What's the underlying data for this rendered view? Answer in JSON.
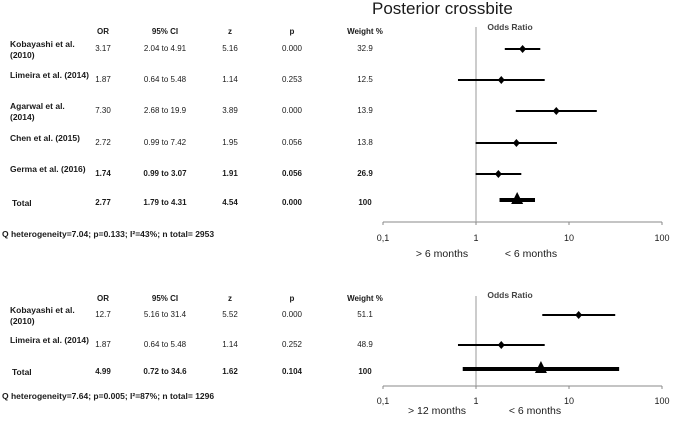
{
  "title": "Posterior crossbite",
  "chart_data": [
    {
      "type": "forest",
      "columns": [
        "OR",
        "95% CI",
        "z",
        "p",
        "Weight %"
      ],
      "axis_title": "Odds Ratio",
      "x_scale": "log",
      "xlim": [
        0.1,
        100
      ],
      "ticks": [
        {
          "value": 0.1,
          "label": "0,1"
        },
        {
          "value": 1,
          "label": "1"
        },
        {
          "value": 10,
          "label": "10"
        },
        {
          "value": 100,
          "label": "100"
        }
      ],
      "left_label": "> 6 months",
      "right_label": "< 6 months",
      "studies": [
        {
          "name": "Kobayashi et al. (2010)",
          "or": 3.17,
          "lo": 2.04,
          "hi": 4.91,
          "or_text": "3.17",
          "ci_text": "2.04 to 4.91",
          "z": "5.16",
          "p": "0.000",
          "weight": "32.9",
          "bold": false
        },
        {
          "name": "Limeira et al. (2014)",
          "or": 1.87,
          "lo": 0.64,
          "hi": 5.48,
          "or_text": "1.87",
          "ci_text": "0.64 to 5.48",
          "z": "1.14",
          "p": "0.253",
          "weight": "12.5",
          "bold": false
        },
        {
          "name": "Agarwal et al. (2014)",
          "or": 7.3,
          "lo": 2.68,
          "hi": 19.9,
          "or_text": "7.30",
          "ci_text": "2.68 to 19.9",
          "z": "3.89",
          "p": "0.000",
          "weight": "13.9",
          "bold": false
        },
        {
          "name": "Chen et al. (2015)",
          "or": 2.72,
          "lo": 0.99,
          "hi": 7.42,
          "or_text": "2.72",
          "ci_text": "0.99 to 7.42",
          "z": "1.95",
          "p": "0.056",
          "weight": "13.8",
          "bold": false
        },
        {
          "name": "Germa et al. (2016)",
          "or": 1.74,
          "lo": 0.99,
          "hi": 3.07,
          "or_text": "1.74",
          "ci_text": "0.99 to 3.07",
          "z": "1.91",
          "p": "0.056",
          "weight": "26.9",
          "bold": true
        }
      ],
      "total": {
        "name": "Total",
        "or": 2.77,
        "lo": 1.79,
        "hi": 4.31,
        "or_text": "2.77",
        "ci_text": "1.79 to 4.31",
        "z": "4.54",
        "p": "0.000",
        "weight": "100"
      },
      "heterogeneity": "Q heterogeneity=7.04; p=0.133; I²=43%; n total= 2953"
    },
    {
      "type": "forest",
      "columns": [
        "OR",
        "95% CI",
        "z",
        "p",
        "Weight %"
      ],
      "axis_title": "Odds Ratio",
      "x_scale": "log",
      "xlim": [
        0.1,
        100
      ],
      "ticks": [
        {
          "value": 0.1,
          "label": "0,1"
        },
        {
          "value": 1,
          "label": "1"
        },
        {
          "value": 10,
          "label": "10"
        },
        {
          "value": 100,
          "label": "100"
        }
      ],
      "left_label": "> 12 months",
      "right_label": "< 6 months",
      "studies": [
        {
          "name": "Kobayashi et al. (2010)",
          "or": 12.7,
          "lo": 5.16,
          "hi": 31.4,
          "or_text": "12.7",
          "ci_text": "5.16 to 31.4",
          "z": "5.52",
          "p": "0.000",
          "weight": "51.1",
          "bold": false
        },
        {
          "name": "Limeira et al. (2014)",
          "or": 1.87,
          "lo": 0.64,
          "hi": 5.48,
          "or_text": "1.87",
          "ci_text": "0.64 to 5.48",
          "z": "1.14",
          "p": "0.252",
          "weight": "48.9",
          "bold": false
        }
      ],
      "total": {
        "name": "Total",
        "or": 4.99,
        "lo": 0.72,
        "hi": 34.6,
        "or_text": "4.99",
        "ci_text": "0.72 to 34.6",
        "z": "1.62",
        "p": "0.104",
        "weight": "100"
      },
      "heterogeneity": "Q heterogeneity=7.64; p=0.005; I²=87%; n total= 1296"
    }
  ]
}
